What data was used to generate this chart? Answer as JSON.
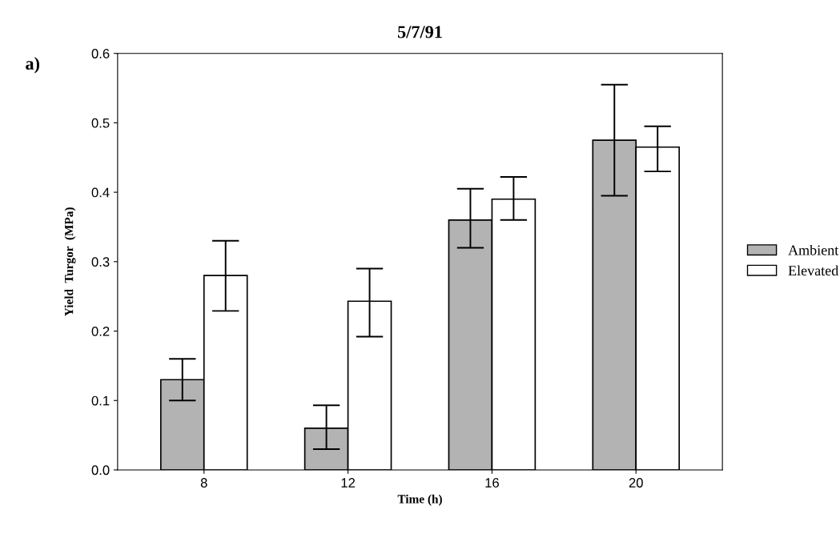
{
  "chart_data": {
    "type": "bar",
    "title": "5/7/91",
    "xlabel": "Time (h)",
    "ylabel": "Yield  Turgor  (MPa)",
    "annotations": [
      "a)"
    ],
    "categories": [
      "8",
      "12",
      "16",
      "20"
    ],
    "series": [
      {
        "name": "Ambient",
        "color": "#b3b3b3",
        "values": [
          0.13,
          0.06,
          0.36,
          0.475
        ],
        "errors": [
          [
            0.1,
            0.16
          ],
          [
            0.03,
            0.093
          ],
          [
            0.32,
            0.405
          ],
          [
            0.395,
            0.555
          ]
        ]
      },
      {
        "name": "Elevated",
        "color": "#ffffff",
        "values": [
          0.28,
          0.243,
          0.39,
          0.465
        ],
        "errors": [
          [
            0.229,
            0.33
          ],
          [
            0.192,
            0.29
          ],
          [
            0.36,
            0.422
          ],
          [
            0.43,
            0.495
          ]
        ]
      }
    ],
    "ylim": [
      0,
      0.6
    ],
    "yticks": [
      {
        "value": 0,
        "label": "0.0"
      },
      {
        "value": 0.1,
        "label": "0.1"
      },
      {
        "value": 0.2,
        "label": "0.2"
      },
      {
        "value": 0.3,
        "label": "0.3"
      },
      {
        "value": 0.4,
        "label": "0.4"
      },
      {
        "value": 0.5,
        "label": "0.5"
      },
      {
        "value": 0.6,
        "label": "0.6"
      }
    ],
    "legend": "right",
    "grid": false
  }
}
